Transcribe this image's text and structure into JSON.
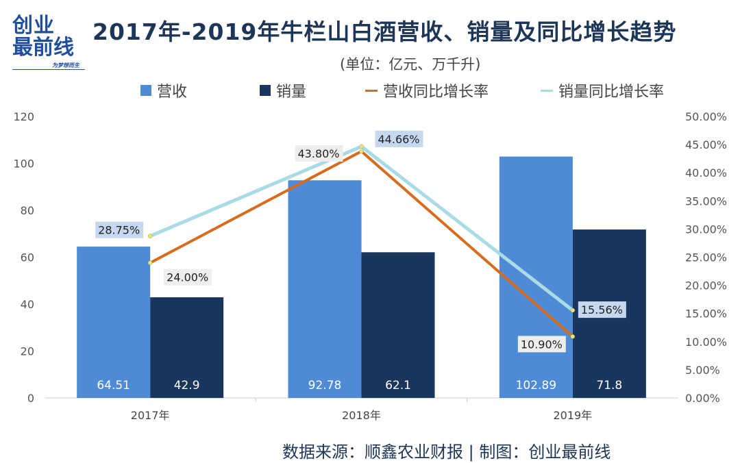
{
  "logo": {
    "line1": "创业",
    "line2": "最前线",
    "slogan": "为梦想而生"
  },
  "chart_data": {
    "type": "bar+line",
    "title": "2017年-2019年牛栏山白酒营收、销量及同比增长趋势",
    "subtitle": "(单位：亿元、万千升)",
    "categories": [
      "2017年",
      "2018年",
      "2019年"
    ],
    "left_axis": {
      "range": [
        0,
        120
      ],
      "ticks": [
        "0",
        "20",
        "40",
        "60",
        "80",
        "100",
        "120"
      ]
    },
    "right_axis": {
      "range": [
        0,
        50
      ],
      "ticks": [
        "0.00%",
        "5.00%",
        "10.00%",
        "15.00%",
        "20.00%",
        "25.00%",
        "30.00%",
        "35.00%",
        "40.00%",
        "45.00%",
        "50.00%"
      ]
    },
    "series": [
      {
        "name": "营收",
        "type": "bar",
        "axis": "left",
        "color": "#4e8ad6",
        "values": [
          64.51,
          92.78,
          102.89
        ],
        "labels": [
          "64.51",
          "92.78",
          "102.89"
        ]
      },
      {
        "name": "销量",
        "type": "bar",
        "axis": "left",
        "color": "#1a365d",
        "values": [
          42.9,
          62.1,
          71.8
        ],
        "labels": [
          "42.9",
          "62.1",
          "71.8"
        ]
      },
      {
        "name": "营收同比增长率",
        "type": "line",
        "axis": "right",
        "color": "#d96b1c",
        "values": [
          24.0,
          43.8,
          10.9
        ],
        "labels": [
          "24.00%",
          "43.80%",
          "10.90%"
        ]
      },
      {
        "name": "销量同比增长率",
        "type": "line",
        "axis": "right",
        "color": "#a8dbe6",
        "values": [
          28.75,
          44.66,
          15.56
        ],
        "labels": [
          "28.75%",
          "44.66%",
          "15.56%"
        ]
      }
    ],
    "legend": "top",
    "grid": false
  },
  "source": "数据来源：顺鑫农业财报  |  制图：创业最前线"
}
